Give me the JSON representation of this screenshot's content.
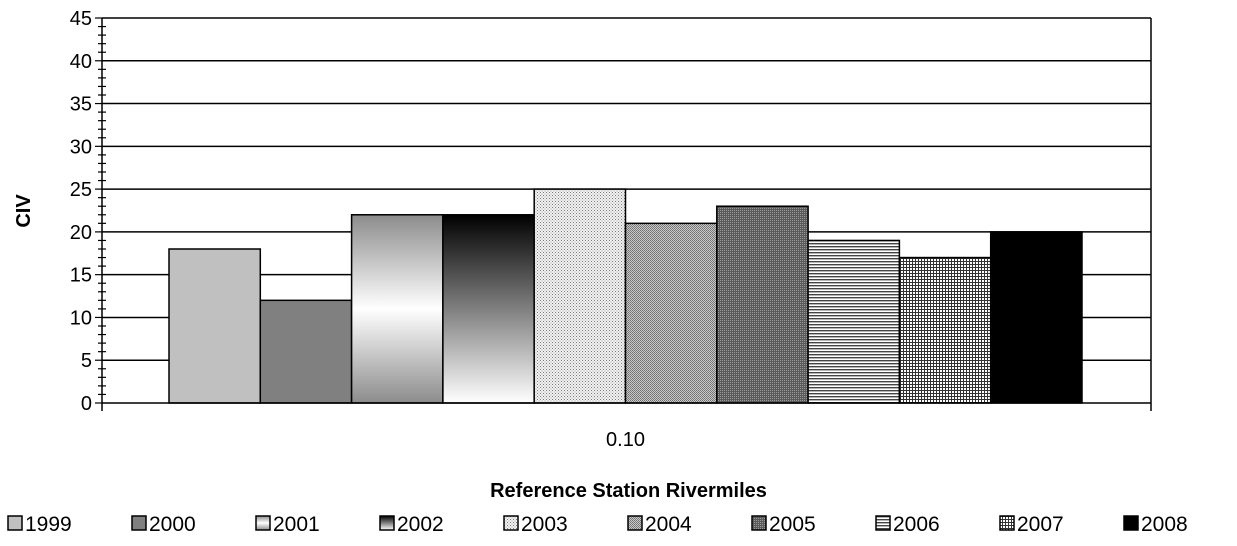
{
  "chart_data": {
    "type": "bar",
    "categories": [
      "0.10"
    ],
    "series": [
      {
        "name": "1999",
        "values": [
          18
        ],
        "pattern": "solid",
        "color": "#c0c0c0"
      },
      {
        "name": "2000",
        "values": [
          12
        ],
        "pattern": "solid",
        "color": "#808080"
      },
      {
        "name": "2001",
        "values": [
          22
        ],
        "pattern": "gradient-gray-white-gray",
        "color": "#9a9a9a"
      },
      {
        "name": "2002",
        "values": [
          22
        ],
        "pattern": "gradient-black-white",
        "color": "#000000"
      },
      {
        "name": "2003",
        "values": [
          25
        ],
        "pattern": "fine-dots-light",
        "color": "#e0e0e0"
      },
      {
        "name": "2004",
        "values": [
          21
        ],
        "pattern": "fine-dots-medium",
        "color": "#a8a8a8"
      },
      {
        "name": "2005",
        "values": [
          23
        ],
        "pattern": "fine-dots-dark",
        "color": "#707070"
      },
      {
        "name": "2006",
        "values": [
          19
        ],
        "pattern": "horizontal-lines",
        "color": "#606060"
      },
      {
        "name": "2007",
        "values": [
          17
        ],
        "pattern": "grid",
        "color": "#505050"
      },
      {
        "name": "2008",
        "values": [
          20
        ],
        "pattern": "solid",
        "color": "#000000"
      }
    ],
    "xlabel": "Reference Station Rivermiles",
    "ylabel": "CIV",
    "ylim": [
      0,
      45
    ],
    "yticks": [
      "0",
      "5",
      "10",
      "15",
      "20",
      "25",
      "30",
      "35",
      "40",
      "45"
    ],
    "grid": true,
    "legend_position": "bottom"
  }
}
